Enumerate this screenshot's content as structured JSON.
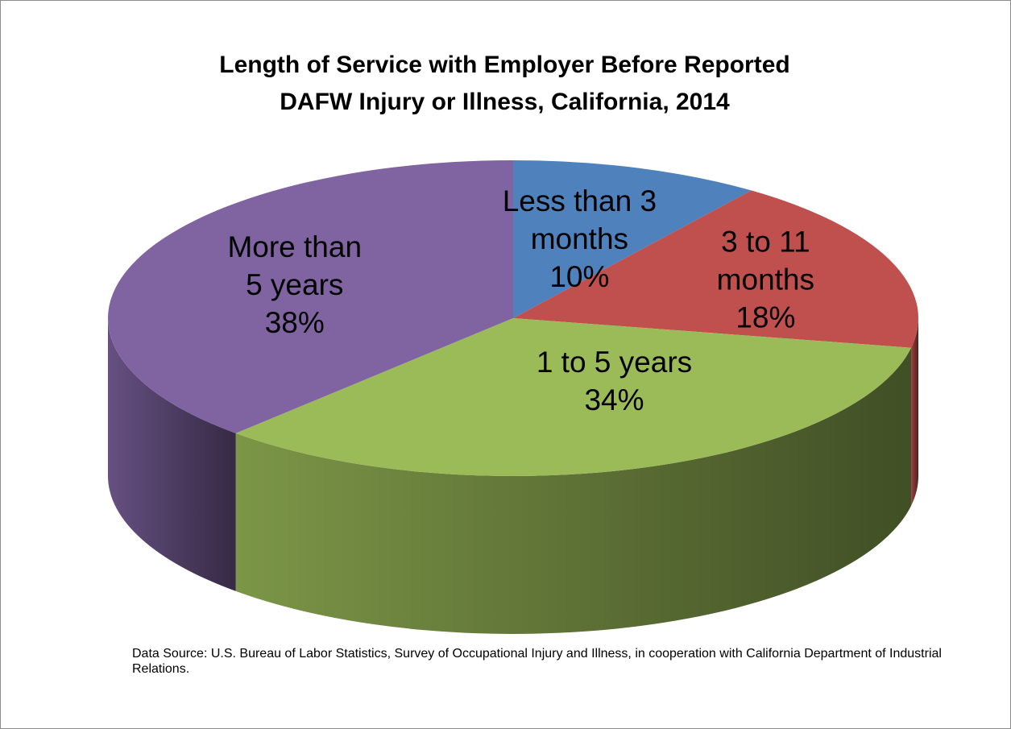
{
  "chart_data": {
    "type": "pie",
    "title_lines": [
      "Length of Service with Employer Before Reported",
      "DAFW Injury or Illness, California, 2014"
    ],
    "slices": [
      {
        "name": "Less than 3 months",
        "label_lines": [
          "Less than 3",
          "months",
          "10%"
        ],
        "value": 10,
        "color": "#4f81bd"
      },
      {
        "name": "3 to 11 months",
        "label_lines": [
          "3 to 11",
          "months",
          "18%"
        ],
        "value": 18,
        "color": "#c0504d"
      },
      {
        "name": "1 to 5 years",
        "label_lines": [
          "1 to 5 years",
          "34%"
        ],
        "value": 34,
        "color": "#9bbb59"
      },
      {
        "name": "More than 5 years",
        "label_lines": [
          "More than",
          "5 years",
          "38%"
        ],
        "value": 38,
        "color": "#8064a2"
      }
    ],
    "style": "3d-pie",
    "legend": "none"
  },
  "source_note": "Data Source: U.S. Bureau of Labor Statistics, Survey of Occupational Injury and Illness, in cooperation with California Department of Industrial Relations."
}
